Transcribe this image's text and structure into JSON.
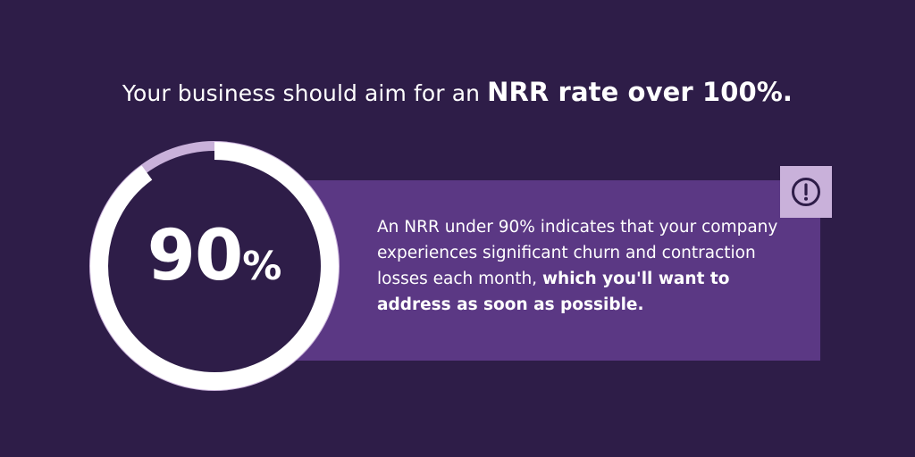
{
  "headline": {
    "lead": "Your business should aim for an ",
    "emphasis": "NRR rate over 100%."
  },
  "gauge": {
    "value": "90",
    "unit": "%",
    "fill_fraction": 0.9,
    "colors": {
      "progress_ring": "#ffffff",
      "inner_ring": "#c9b1da",
      "center": "#2e1d48"
    }
  },
  "callout": {
    "text_regular": "An NRR under 90% indicates that your company experiences significant churn and contraction losses each month, ",
    "text_bold": "which you'll want to address as soon as possible.",
    "icon": "exclamation-circle-icon",
    "colors": {
      "panel": "#5b3884",
      "icon_badge": "#c9b1da",
      "icon_stroke": "#2e1d48"
    }
  },
  "background": "#2e1d48"
}
